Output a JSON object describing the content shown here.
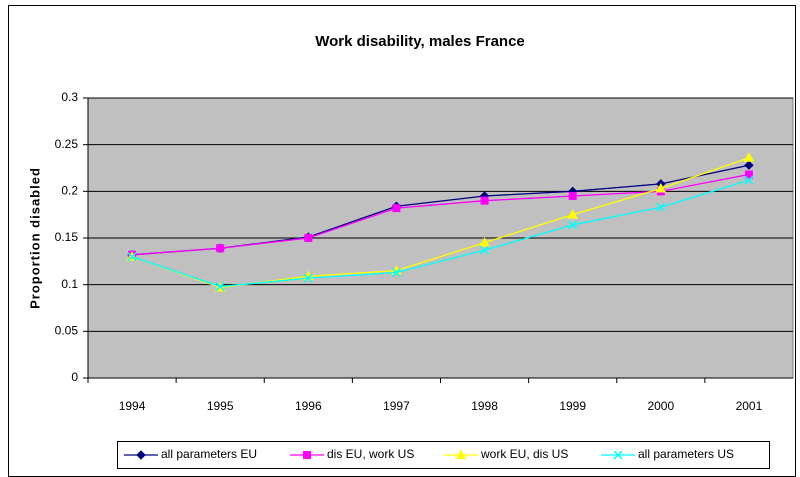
{
  "chart_data": {
    "type": "line",
    "title": "Work disability, males France",
    "y_label": "Proportion disabled",
    "categories": [
      "1994",
      "1995",
      "1996",
      "1997",
      "1998",
      "1999",
      "2000",
      "2001"
    ],
    "series": [
      {
        "name": "all parameters EU",
        "color": "#000080",
        "marker": "diamond",
        "values": [
          0.132,
          0.139,
          0.151,
          0.184,
          0.195,
          0.2,
          0.208,
          0.228
        ]
      },
      {
        "name": "dis EU, work US",
        "color": "#ff00ff",
        "marker": "square",
        "values": [
          0.132,
          0.139,
          0.15,
          0.182,
          0.19,
          0.195,
          0.2,
          0.218
        ]
      },
      {
        "name": "work EU, dis US",
        "color": "#ffff00",
        "marker": "triangle",
        "values": [
          0.13,
          0.097,
          0.109,
          0.115,
          0.145,
          0.175,
          0.203,
          0.236
        ]
      },
      {
        "name": "all parameters US",
        "color": "#00ffff",
        "marker": "x",
        "values": [
          0.13,
          0.098,
          0.107,
          0.113,
          0.137,
          0.164,
          0.183,
          0.212
        ]
      }
    ],
    "ylim": [
      0,
      0.3
    ],
    "yticks": [
      0,
      0.05,
      0.1,
      0.15,
      0.2,
      0.25,
      0.3
    ],
    "grid": true,
    "legend": "bottom"
  }
}
